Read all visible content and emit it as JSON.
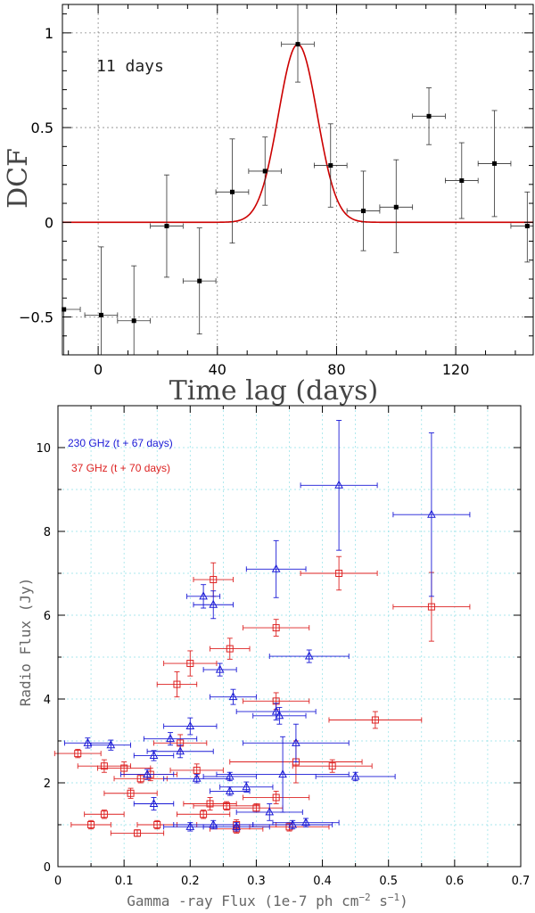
{
  "chart_data": [
    {
      "type": "scatter",
      "xlabel": "Time lag (days)",
      "ylabel": "DCF",
      "annotation": "11 days",
      "xlim": [
        -12,
        146
      ],
      "ylim": [
        -0.7,
        1.15
      ],
      "xticks": [
        0,
        40,
        80,
        120
      ],
      "yticks": [
        -0.5,
        0,
        0.5,
        1
      ],
      "ytick_labels": [
        "−0.5",
        "0",
        "0.5",
        "1"
      ],
      "grid": true,
      "points": [
        {
          "x": -11.5,
          "y": -0.46,
          "xerr": 5.5,
          "yerr_low": 0.24,
          "yerr_high": 0.0
        },
        {
          "x": 1,
          "y": -0.49,
          "xerr": 5.5,
          "yerr_low": 0.4,
          "yerr_high": 0.36
        },
        {
          "x": 12,
          "y": -0.52,
          "xerr": 5.5,
          "yerr_low": 0.18,
          "yerr_high": 0.29
        },
        {
          "x": 23,
          "y": -0.02,
          "xerr": 5.5,
          "yerr_low": 0.27,
          "yerr_high": 0.27
        },
        {
          "x": 34,
          "y": -0.31,
          "xerr": 5.5,
          "yerr_low": 0.28,
          "yerr_high": 0.28
        },
        {
          "x": 45,
          "y": 0.16,
          "xerr": 5.5,
          "yerr_low": 0.27,
          "yerr_high": 0.28
        },
        {
          "x": 56,
          "y": 0.27,
          "xerr": 5.5,
          "yerr_low": 0.18,
          "yerr_high": 0.18
        },
        {
          "x": 67,
          "y": 0.94,
          "xerr": 5.5,
          "yerr_low": 0.2,
          "yerr_high": 0.21
        },
        {
          "x": 78,
          "y": 0.3,
          "xerr": 5.5,
          "yerr_low": 0.22,
          "yerr_high": 0.22
        },
        {
          "x": 89,
          "y": 0.06,
          "xerr": 5.5,
          "yerr_low": 0.21,
          "yerr_high": 0.21
        },
        {
          "x": 100,
          "y": 0.08,
          "xerr": 5.5,
          "yerr_low": 0.24,
          "yerr_high": 0.25
        },
        {
          "x": 111,
          "y": 0.56,
          "xerr": 5.5,
          "yerr_low": 0.15,
          "yerr_high": 0.15
        },
        {
          "x": 122,
          "y": 0.22,
          "xerr": 5.5,
          "yerr_low": 0.2,
          "yerr_high": 0.2
        },
        {
          "x": 133,
          "y": 0.31,
          "xerr": 5.5,
          "yerr_low": 0.28,
          "yerr_high": 0.28
        },
        {
          "x": 144,
          "y": -0.02,
          "xerr": 5.5,
          "yerr_low": 0.19,
          "yerr_high": 0.18
        }
      ],
      "gaussian_fit": {
        "amplitude": 0.94,
        "center": 67,
        "sigma": 6.5,
        "color": "#cc0000"
      }
    },
    {
      "type": "scatter",
      "xlabel": "Gamma -ray Flux (1e-7 ph cm",
      "xlabel_sup1": "−2",
      "xlabel_mid": " s",
      "xlabel_sup2": "−1",
      "xlabel_end": ")",
      "ylabel": "Radio Flux (Jy)",
      "xlim": [
        0,
        0.7
      ],
      "ylim": [
        0,
        11
      ],
      "xticks": [
        0,
        0.1,
        0.2,
        0.3,
        0.4,
        0.5,
        0.6,
        0.7
      ],
      "yticks": [
        0,
        2,
        4,
        6,
        8,
        10
      ],
      "grid": true,
      "legend_position": "top-left",
      "series": [
        {
          "name": "230 GHz (t + 67 days)",
          "color": "#1a1ad6",
          "marker": "triangle",
          "points": [
            {
              "x": 0.425,
              "y": 9.1,
              "xerr": 0.058,
              "yerr": 1.55
            },
            {
              "x": 0.565,
              "y": 8.4,
              "xerr": 0.058,
              "yerr": 1.95
            },
            {
              "x": 0.33,
              "y": 7.1,
              "xerr": 0.045,
              "yerr": 0.68
            },
            {
              "x": 0.22,
              "y": 6.45,
              "xerr": 0.025,
              "yerr": 0.28
            },
            {
              "x": 0.235,
              "y": 6.25,
              "xerr": 0.03,
              "yerr": 0.33
            },
            {
              "x": 0.245,
              "y": 4.7,
              "xerr": 0.025,
              "yerr": 0.15
            },
            {
              "x": 0.38,
              "y": 5.02,
              "xerr": 0.06,
              "yerr": 0.15
            },
            {
              "x": 0.265,
              "y": 4.05,
              "xerr": 0.035,
              "yerr": 0.18
            },
            {
              "x": 0.33,
              "y": 3.7,
              "xerr": 0.06,
              "yerr": 0.2
            },
            {
              "x": 0.335,
              "y": 3.6,
              "xerr": 0.04,
              "yerr": 0.2
            },
            {
              "x": 0.36,
              "y": 2.95,
              "xerr": 0.08,
              "yerr": 0.45
            },
            {
              "x": 0.45,
              "y": 2.15,
              "xerr": 0.06,
              "yerr": 0.1
            },
            {
              "x": 0.2,
              "y": 3.35,
              "xerr": 0.04,
              "yerr": 0.2
            },
            {
              "x": 0.17,
              "y": 3.05,
              "xerr": 0.04,
              "yerr": 0.15
            },
            {
              "x": 0.045,
              "y": 2.95,
              "xerr": 0.035,
              "yerr": 0.12
            },
            {
              "x": 0.08,
              "y": 2.9,
              "xerr": 0.03,
              "yerr": 0.12
            },
            {
              "x": 0.185,
              "y": 2.75,
              "xerr": 0.05,
              "yerr": 0.15
            },
            {
              "x": 0.145,
              "y": 2.65,
              "xerr": 0.03,
              "yerr": 0.12
            },
            {
              "x": 0.135,
              "y": 2.2,
              "xerr": 0.04,
              "yerr": 0.12
            },
            {
              "x": 0.21,
              "y": 2.1,
              "xerr": 0.05,
              "yerr": 0.1
            },
            {
              "x": 0.26,
              "y": 2.15,
              "xerr": 0.04,
              "yerr": 0.1
            },
            {
              "x": 0.285,
              "y": 1.9,
              "xerr": 0.04,
              "yerr": 0.12
            },
            {
              "x": 0.26,
              "y": 1.8,
              "xerr": 0.03,
              "yerr": 0.1
            },
            {
              "x": 0.34,
              "y": 2.2,
              "xerr": 0.1,
              "yerr": 0.9
            },
            {
              "x": 0.145,
              "y": 1.5,
              "xerr": 0.03,
              "yerr": 0.15
            },
            {
              "x": 0.32,
              "y": 1.3,
              "xerr": 0.05,
              "yerr": 0.2
            },
            {
              "x": 0.355,
              "y": 1.0,
              "xerr": 0.06,
              "yerr": 0.1
            },
            {
              "x": 0.375,
              "y": 1.05,
              "xerr": 0.05,
              "yerr": 0.1
            },
            {
              "x": 0.235,
              "y": 1.0,
              "xerr": 0.06,
              "yerr": 0.1
            },
            {
              "x": 0.27,
              "y": 0.95,
              "xerr": 0.05,
              "yerr": 0.1
            },
            {
              "x": 0.2,
              "y": 0.95,
              "xerr": 0.04,
              "yerr": 0.1
            }
          ]
        },
        {
          "name": "37 GHz (t + 70 days)",
          "color": "#dd2222",
          "marker": "square",
          "points": [
            {
              "x": 0.425,
              "y": 7.0,
              "xerr": 0.058,
              "yerr": 0.4
            },
            {
              "x": 0.565,
              "y": 6.2,
              "xerr": 0.058,
              "yerr": 0.82
            },
            {
              "x": 0.235,
              "y": 6.85,
              "xerr": 0.03,
              "yerr": 0.4
            },
            {
              "x": 0.33,
              "y": 5.7,
              "xerr": 0.05,
              "yerr": 0.2
            },
            {
              "x": 0.26,
              "y": 5.2,
              "xerr": 0.03,
              "yerr": 0.25
            },
            {
              "x": 0.2,
              "y": 4.85,
              "xerr": 0.04,
              "yerr": 0.3
            },
            {
              "x": 0.18,
              "y": 4.35,
              "xerr": 0.03,
              "yerr": 0.3
            },
            {
              "x": 0.33,
              "y": 3.95,
              "xerr": 0.05,
              "yerr": 0.2
            },
            {
              "x": 0.48,
              "y": 3.5,
              "xerr": 0.07,
              "yerr": 0.2
            },
            {
              "x": 0.36,
              "y": 2.5,
              "xerr": 0.1,
              "yerr": 0.5
            },
            {
              "x": 0.415,
              "y": 2.4,
              "xerr": 0.06,
              "yerr": 0.15
            },
            {
              "x": 0.185,
              "y": 2.95,
              "xerr": 0.04,
              "yerr": 0.2
            },
            {
              "x": 0.03,
              "y": 2.7,
              "xerr": 0.035,
              "yerr": 0.1
            },
            {
              "x": 0.07,
              "y": 2.4,
              "xerr": 0.04,
              "yerr": 0.15
            },
            {
              "x": 0.1,
              "y": 2.35,
              "xerr": 0.04,
              "yerr": 0.15
            },
            {
              "x": 0.14,
              "y": 2.2,
              "xerr": 0.04,
              "yerr": 0.15
            },
            {
              "x": 0.21,
              "y": 2.3,
              "xerr": 0.04,
              "yerr": 0.15
            },
            {
              "x": 0.125,
              "y": 2.1,
              "xerr": 0.04,
              "yerr": 0.1
            },
            {
              "x": 0.11,
              "y": 1.75,
              "xerr": 0.04,
              "yerr": 0.12
            },
            {
              "x": 0.23,
              "y": 1.5,
              "xerr": 0.04,
              "yerr": 0.15
            },
            {
              "x": 0.33,
              "y": 1.65,
              "xerr": 0.05,
              "yerr": 0.15
            },
            {
              "x": 0.255,
              "y": 1.45,
              "xerr": 0.05,
              "yerr": 0.1
            },
            {
              "x": 0.3,
              "y": 1.4,
              "xerr": 0.04,
              "yerr": 0.1
            },
            {
              "x": 0.22,
              "y": 1.25,
              "xerr": 0.04,
              "yerr": 0.1
            },
            {
              "x": 0.07,
              "y": 1.25,
              "xerr": 0.03,
              "yerr": 0.1
            },
            {
              "x": 0.05,
              "y": 1.0,
              "xerr": 0.03,
              "yerr": 0.1
            },
            {
              "x": 0.15,
              "y": 1.0,
              "xerr": 0.03,
              "yerr": 0.1
            },
            {
              "x": 0.27,
              "y": 1.0,
              "xerr": 0.06,
              "yerr": 0.12
            },
            {
              "x": 0.35,
              "y": 0.95,
              "xerr": 0.06,
              "yerr": 0.1
            },
            {
              "x": 0.12,
              "y": 0.8,
              "xerr": 0.04,
              "yerr": 0.08
            },
            {
              "x": 0.27,
              "y": 0.9,
              "xerr": 0.04,
              "yerr": 0.1
            }
          ]
        }
      ]
    }
  ]
}
